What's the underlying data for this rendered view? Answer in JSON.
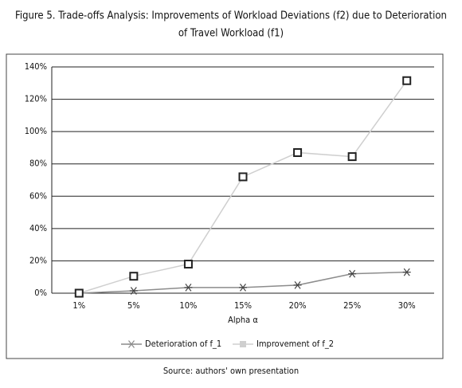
{
  "chart_data": {
    "type": "line",
    "title": [
      "Figure 5. Trade-offs Analysis: Improvements of Workload Deviations (f2) due to Deterioration",
      "of Travel Workload (f1)"
    ],
    "x_label": "Alpha α",
    "categories": [
      "1%",
      "5%",
      "10%",
      "15%",
      "20%",
      "25%",
      "30%"
    ],
    "series": [
      {
        "name": "Deterioration of f_1",
        "color": "#8c8c8c",
        "marker": "asterisk",
        "values": [
          0,
          1.5,
          3.5,
          3.5,
          5,
          12,
          13
        ]
      },
      {
        "name": "Improvement of f_2",
        "color": "#cfcfcf",
        "marker": "square",
        "values": [
          0,
          10.5,
          18,
          72,
          87,
          84.5,
          131.5
        ]
      }
    ],
    "ylim": [
      0,
      140
    ],
    "yticks": [
      {
        "value": 0,
        "label": "0%"
      },
      {
        "value": 20,
        "label": "20%"
      },
      {
        "value": 40,
        "label": "40%"
      },
      {
        "value": 60,
        "label": "60%"
      },
      {
        "value": 80,
        "label": "80%"
      },
      {
        "value": 100,
        "label": "100%"
      },
      {
        "value": 120,
        "label": "120%"
      },
      {
        "value": 140,
        "label": "140%"
      }
    ],
    "grid": true,
    "legend": "bottom",
    "source": "Source: authors' own presentation"
  }
}
